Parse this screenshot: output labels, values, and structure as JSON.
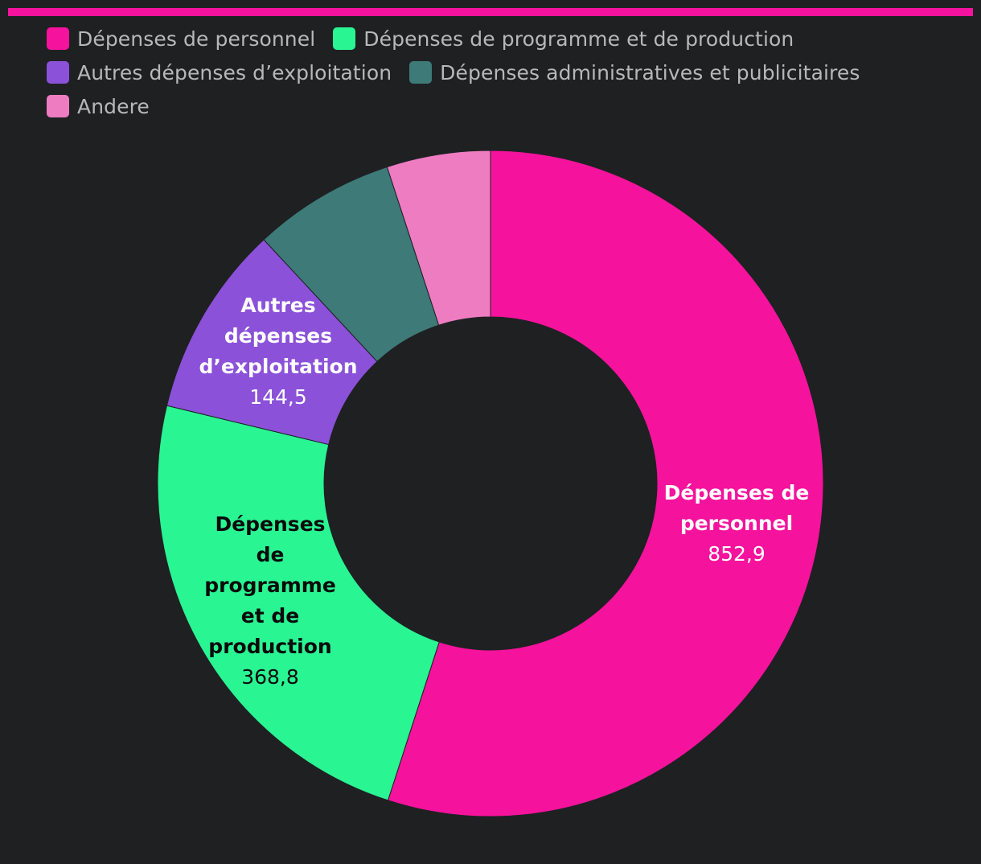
{
  "theme": {
    "background": "#1f2022",
    "accent": "#f5129c"
  },
  "legend": [
    {
      "label": "Dépenses de personnel",
      "color": "#f5129c"
    },
    {
      "label": "Dépenses de programme et de production",
      "color": "#29f593"
    },
    {
      "label": "Autres dépenses d’exploitation",
      "color": "#8b51d9"
    },
    {
      "label": "Dépenses administratives et publicitaires",
      "color": "#3d7a78"
    },
    {
      "label": "Andere",
      "color": "#ee7cc1"
    }
  ],
  "chart_data": {
    "type": "pie",
    "donut": true,
    "title": "",
    "slices": [
      {
        "label": "Dépenses de personnel",
        "value": 852.9,
        "value_text": "852,9",
        "color": "#f5129c",
        "label_lines": [
          "Dépenses de",
          "personnel"
        ],
        "label_color": "#ffffff"
      },
      {
        "label": "Dépenses de programme et de production",
        "value": 368.8,
        "value_text": "368,8",
        "color": "#29f593",
        "label_lines": [
          "Dépenses",
          "de",
          "programme",
          "et de",
          "production"
        ],
        "label_color": "#0a0a0a"
      },
      {
        "label": "Autres dépenses d’exploitation",
        "value": 144.5,
        "value_text": "144,5",
        "color": "#8b51d9",
        "label_lines": [
          "Autres",
          "dépenses",
          "d’exploitation"
        ],
        "label_color": "#ffffff"
      },
      {
        "label": "Dépenses administratives et publicitaires",
        "value": 107,
        "value_text": "",
        "color": "#3d7a78",
        "label_lines": [],
        "label_color": "#ffffff"
      },
      {
        "label": "Andere",
        "value": 78,
        "value_text": "",
        "color": "#ee7cc1",
        "label_lines": [],
        "label_color": "#ffffff"
      }
    ],
    "legend_position": "top-left"
  }
}
